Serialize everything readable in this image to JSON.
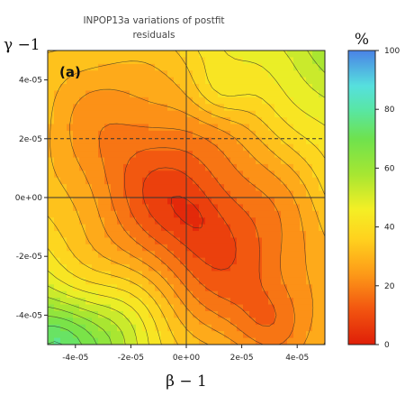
{
  "chart_data": {
    "type": "heatmap",
    "title_line1": "INPOP13a variations of postfit",
    "title_line2": "residuals",
    "xlabel": "β − 1",
    "ylabel": "γ −1",
    "panel_label": "(a)",
    "colorbar_unit": "%",
    "x_ticks": [
      "-4e-05",
      "-2e-05",
      "0e+00",
      "2e-05",
      "4e-05"
    ],
    "y_ticks": [
      "4e-05",
      "2e-05",
      "0e+00",
      "-2e-05",
      "-4e-05"
    ],
    "colorbar_ticks": [
      "100",
      "80",
      "60",
      "40",
      "20",
      "0"
    ],
    "xlim": [
      -5e-05,
      5e-05
    ],
    "ylim": [
      -5e-05,
      5e-05
    ],
    "colorbar_range": [
      0,
      100
    ],
    "reference_lines": {
      "horizontal_dashed_at": 2e-05,
      "vertical_solid_at": 0,
      "horizontal_solid_at": 0
    },
    "contour_levels": [
      5,
      10,
      15,
      20,
      25,
      30,
      35,
      40,
      45,
      50,
      55,
      60,
      65,
      70,
      75,
      80,
      85
    ],
    "minimum_region": {
      "beta_minus_1": 0,
      "gamma_minus_1": 0,
      "value_percent": 0
    },
    "colormap": [
      "#e02a0a",
      "#ff8a1a",
      "#ffe620",
      "#72df3c",
      "#5ae8c6",
      "#4a8ee8"
    ]
  }
}
